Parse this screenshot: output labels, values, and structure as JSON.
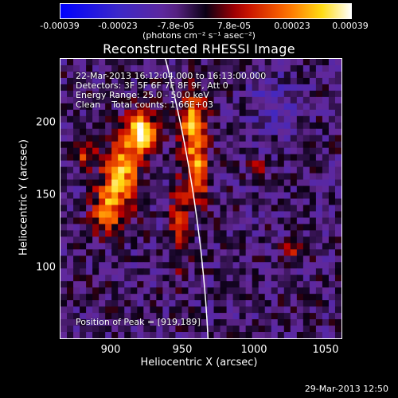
{
  "colorbar": {
    "ticks": [
      "-0.00039",
      "-0.00023",
      "-7.8e-05",
      "7.8e-05",
      "0.00023",
      "0.00039"
    ],
    "units_line": "(photons cm⁻² s⁻¹ asec⁻²)"
  },
  "chart_data": {
    "type": "heatmap",
    "title": "Reconstructed RHESSI Image",
    "xlabel": "Heliocentric X (arcsec)",
    "ylabel": "Heliocentric Y (arcsec)",
    "xlim": [
      864,
      1056
    ],
    "ylim": [
      48,
      240
    ],
    "xticks": [
      "900",
      "950",
      "1000",
      "1050"
    ],
    "yticks": [
      "200",
      "150",
      "100"
    ],
    "color_range": [
      -0.00039,
      0.00039
    ],
    "colormap": "blue-purple-red-yellow-white",
    "annotations": [
      "22-Mar-2013 16:12:04.000 to 16:13:00.000",
      "Detectors: 3F 5F 6F 7F 8F 9F, Att 0",
      "Energy Range: 25.0 - 50.0 keV",
      "Clean    Total counts: 1.66E+03",
      "Position of Peak = [919,189]"
    ],
    "peak": [
      919,
      189
    ]
  },
  "datestamp": "29-Mar-2013 12:50"
}
